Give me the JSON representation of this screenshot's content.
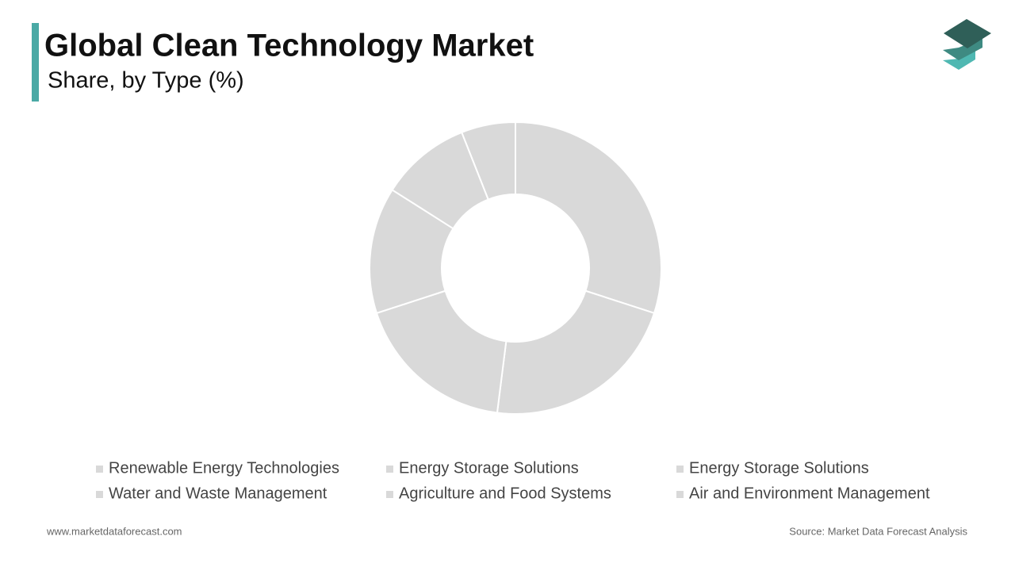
{
  "chart_data": {
    "type": "donut",
    "title": "Global Clean Technology Market",
    "subtitle": "Share, by Type (%)",
    "categories": [
      "Renewable Energy Technologies",
      "Energy Storage Solutions",
      "Energy Storage Solutions",
      "Water and Waste Management",
      "Agriculture and Food Systems",
      "Air and Environment Management"
    ],
    "values": [
      30,
      22,
      18,
      14,
      10,
      6
    ],
    "color": "#d9d9d9"
  },
  "footer": {
    "website": "www.marketdataforecast.com",
    "source": "Source: Market Data Forecast Analysis"
  }
}
